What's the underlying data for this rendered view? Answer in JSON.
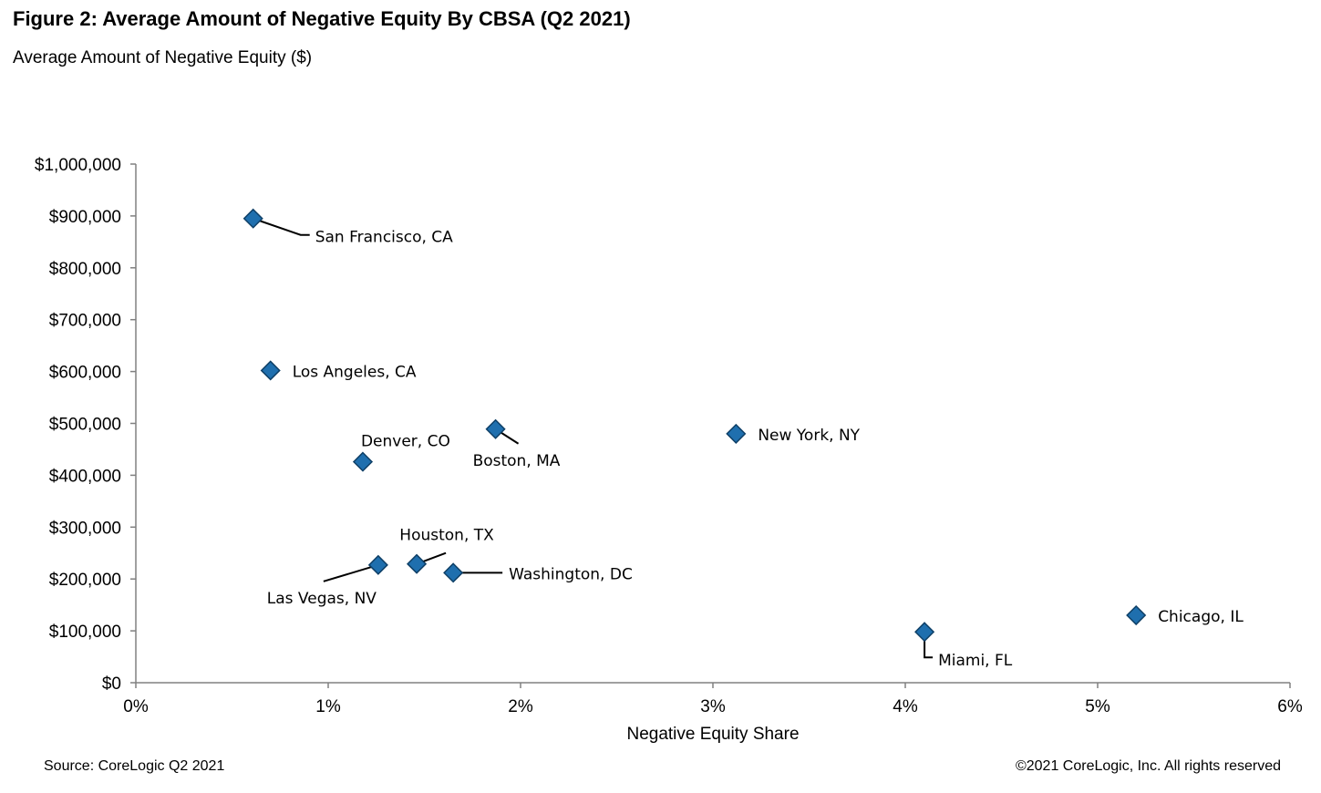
{
  "header": {
    "title": "Figure 2: Average Amount of Negative Equity By CBSA (Q2 2021)",
    "subtitle": "Average Amount  of Negative Equity ($)"
  },
  "footer": {
    "source": "Source: CoreLogic Q2 2021",
    "copyright": "©2021 CoreLogic, Inc. All rights reserved"
  },
  "chart_data": {
    "type": "scatter",
    "title": "Figure 2: Average Amount of Negative Equity By CBSA (Q2 2021)",
    "ylabel": "Average Amount  of Negative Equity ($)",
    "xlabel": "Negative Equity Share",
    "xlim": [
      0,
      6
    ],
    "ylim": [
      0,
      1000000
    ],
    "x_ticks": [
      0,
      1,
      2,
      3,
      4,
      5,
      6
    ],
    "x_tick_labels": [
      "0%",
      "1%",
      "2%",
      "3%",
      "4%",
      "5%",
      "6%"
    ],
    "y_ticks": [
      0,
      100000,
      200000,
      300000,
      400000,
      500000,
      600000,
      700000,
      800000,
      900000,
      1000000
    ],
    "y_tick_labels": [
      "$0",
      "$100,000",
      "$200,000",
      "$300,000",
      "$400,000",
      "$500,000",
      "$600,000",
      "$700,000",
      "$800,000",
      "$900,000",
      "$1,000,000"
    ],
    "grid": false,
    "marker_color": "#1F6FAE",
    "marker_edge_color": "#0E3F66",
    "points": [
      {
        "label": "San Francisco, CA",
        "x": 0.61,
        "y": 895000
      },
      {
        "label": "Los Angeles, CA",
        "x": 0.7,
        "y": 602000
      },
      {
        "label": "Denver, CO",
        "x": 1.18,
        "y": 426000
      },
      {
        "label": "Boston, MA",
        "x": 1.87,
        "y": 489000
      },
      {
        "label": "New York, NY",
        "x": 3.12,
        "y": 480000
      },
      {
        "label": "Las Vegas, NV",
        "x": 1.26,
        "y": 227000
      },
      {
        "label": "Houston, TX",
        "x": 1.46,
        "y": 229000
      },
      {
        "label": "Washington, DC",
        "x": 1.65,
        "y": 212000
      },
      {
        "label": "Miami, FL",
        "x": 4.1,
        "y": 98000
      },
      {
        "label": "Chicago, IL",
        "x": 5.2,
        "y": 130000
      }
    ]
  }
}
